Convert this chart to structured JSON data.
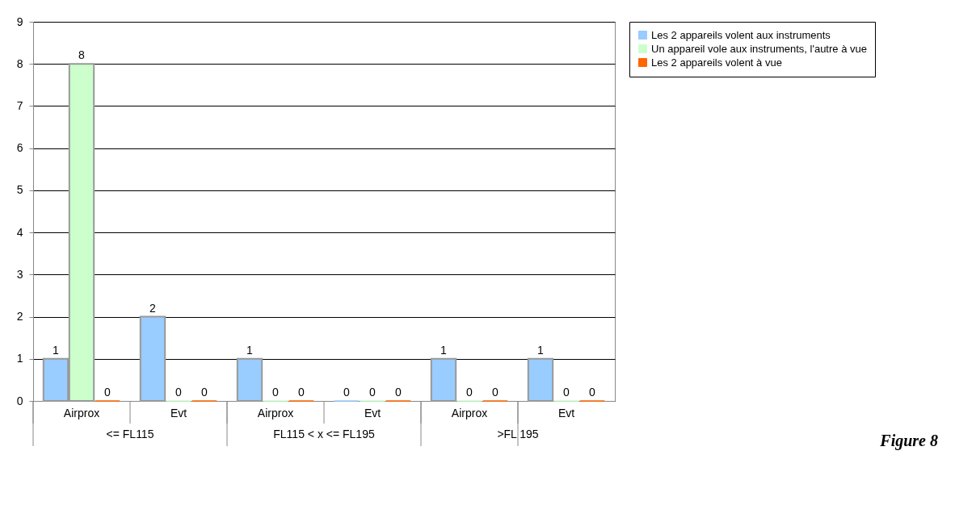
{
  "chart_data": {
    "type": "bar",
    "categories": [
      "Airprox",
      "Evt",
      "Airprox",
      "Evt",
      "Airprox",
      "Evt"
    ],
    "series": [
      {
        "name": "Les 2 appareils volent aux instruments",
        "color": "#99ccff",
        "values": [
          1,
          2,
          1,
          0,
          1,
          1
        ]
      },
      {
        "name": "Un appareil vole aux instruments, l'autre à vue",
        "color": "#ccffcc",
        "values": [
          8,
          0,
          0,
          0,
          0,
          0
        ]
      },
      {
        "name": "Les 2 appareils volent à vue",
        "color": "#ff6600",
        "values": [
          0,
          0,
          0,
          0,
          0,
          0
        ]
      }
    ],
    "ylim": [
      0,
      9
    ],
    "yticks": [
      0,
      1,
      2,
      3,
      4,
      5,
      6,
      7,
      8,
      9
    ],
    "grid": "y",
    "legend": "right",
    "data_labels": true,
    "annotations": [
      "<= FL115",
      "FL115 < x <= FL195",
      ">FL 195",
      "Figure 8"
    ]
  }
}
